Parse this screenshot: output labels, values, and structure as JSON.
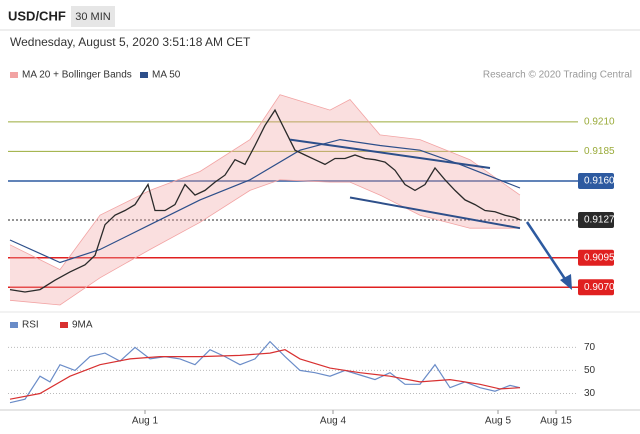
{
  "header": {
    "symbol": "USD/CHF",
    "interval": "30 MIN",
    "timestamp": "Wednesday, August 5, 2020 3:51:18 AM CET",
    "credit": "Research © 2020 Trading Central"
  },
  "chart_data": [
    {
      "type": "line",
      "xlim": [
        0,
        570
      ],
      "ylim": [
        0.9055,
        0.9237
      ],
      "xticks": [
        {
          "value": 137,
          "label": "Aug 1"
        },
        {
          "value": 325,
          "label": "Aug 4"
        },
        {
          "value": 490,
          "label": "Aug 5"
        },
        {
          "value": 548,
          "label": "Aug 15"
        }
      ],
      "series": [
        {
          "name": "MA 20 + Bollinger Bands",
          "color": "#f2a3a3",
          "x": [
            2,
            52,
            92,
            142,
            192,
            242,
            272,
            322,
            342,
            372,
            412,
            462,
            512
          ],
          "upper": [
            0.9106,
            0.9085,
            0.9131,
            0.9152,
            0.9168,
            0.9195,
            0.9233,
            0.922,
            0.9229,
            0.9199,
            0.9195,
            0.9178,
            0.9148
          ],
          "lower": [
            0.9059,
            0.9055,
            0.9078,
            0.9102,
            0.9125,
            0.9152,
            0.9161,
            0.9159,
            0.9159,
            0.9148,
            0.9131,
            0.912,
            0.912
          ]
        },
        {
          "name": "MA 50",
          "color": "#2d4f8a",
          "x": [
            2,
            52,
            92,
            142,
            192,
            242,
            292,
            332,
            372,
            412,
            452,
            512
          ],
          "values": [
            0.911,
            0.9091,
            0.9102,
            0.9123,
            0.9144,
            0.9161,
            0.9186,
            0.9195,
            0.919,
            0.9186,
            0.9174,
            0.9154
          ]
        }
      ],
      "price": {
        "color": "#2a2a2a",
        "x": [
          2,
          17,
          32,
          47,
          62,
          77,
          87,
          97,
          107,
          117,
          127,
          140,
          147,
          157,
          167,
          177,
          187,
          197,
          207,
          217,
          227,
          237,
          247,
          257,
          267,
          277,
          287,
          297,
          307,
          317,
          327,
          337,
          347,
          357,
          367,
          377,
          387,
          397,
          407,
          417,
          427,
          437,
          447,
          457,
          467,
          477,
          487,
          497,
          507,
          512
        ],
        "values": [
          0.9068,
          0.9066,
          0.9068,
          0.9076,
          0.9083,
          0.9089,
          0.9097,
          0.9123,
          0.9131,
          0.9135,
          0.914,
          0.9157,
          0.9135,
          0.9135,
          0.914,
          0.9157,
          0.9148,
          0.9152,
          0.9159,
          0.9165,
          0.9178,
          0.9174,
          0.919,
          0.9207,
          0.922,
          0.9203,
          0.9186,
          0.9182,
          0.9178,
          0.9174,
          0.9179,
          0.9179,
          0.9182,
          0.9179,
          0.9178,
          0.9176,
          0.9169,
          0.9157,
          0.9152,
          0.9157,
          0.9171,
          0.9161,
          0.9152,
          0.9144,
          0.914,
          0.9135,
          0.9134,
          0.9131,
          0.9129,
          0.9127
        ]
      },
      "trendlines": [
        {
          "color": "#2d4f8a",
          "x": [
            282,
            482
          ],
          "values": [
            0.9195,
            0.9171
          ]
        },
        {
          "color": "#2d4f8a",
          "x": [
            342,
            512
          ],
          "values": [
            0.9146,
            0.912
          ]
        }
      ],
      "levels": [
        {
          "value": 0.921,
          "label": "0.9210",
          "color": "#9aab3a",
          "boxed": false,
          "dashed": false
        },
        {
          "value": 0.9185,
          "label": "0.9185",
          "color": "#9aab3a",
          "boxed": false,
          "dashed": false
        },
        {
          "value": 0.916,
          "label": "0.9160",
          "color": "#2d5aa0",
          "boxed": true,
          "dashed": false
        },
        {
          "value": 0.9127,
          "label": "0.9127",
          "color": "#2a2a2a",
          "boxed": true,
          "dashed": true
        },
        {
          "value": 0.9095,
          "label": "0.9095",
          "color": "#e02020",
          "boxed": true,
          "dashed": false
        },
        {
          "value": 0.907,
          "label": "0.9070",
          "color": "#e02020",
          "boxed": true,
          "dashed": false
        }
      ]
    },
    {
      "type": "line",
      "xlim": [
        0,
        570
      ],
      "ylim": [
        20,
        79
      ],
      "yticks": [
        30,
        50,
        70
      ],
      "series": [
        {
          "name": "RSI",
          "color": "#6a8cc8",
          "x": [
            2,
            17,
            32,
            42,
            52,
            67,
            82,
            97,
            112,
            127,
            142,
            157,
            172,
            187,
            202,
            217,
            232,
            247,
            262,
            277,
            292,
            307,
            322,
            337,
            352,
            367,
            382,
            397,
            412,
            427,
            442,
            457,
            472,
            487,
            502,
            512
          ],
          "values": [
            22,
            25,
            45,
            40,
            55,
            50,
            62,
            65,
            58,
            70,
            60,
            62,
            60,
            55,
            68,
            62,
            55,
            60,
            75,
            62,
            50,
            48,
            45,
            50,
            46,
            42,
            48,
            38,
            38,
            55,
            35,
            40,
            35,
            32,
            37,
            35
          ]
        },
        {
          "name": "9MA",
          "color": "#d83030",
          "x": [
            2,
            32,
            62,
            92,
            122,
            152,
            192,
            232,
            262,
            277,
            292,
            322,
            352,
            382,
            412,
            442,
            472,
            492,
            512
          ],
          "values": [
            25,
            30,
            45,
            55,
            60,
            62,
            62,
            63,
            65,
            68,
            60,
            52,
            48,
            45,
            40,
            42,
            38,
            34,
            35
          ]
        }
      ]
    }
  ]
}
